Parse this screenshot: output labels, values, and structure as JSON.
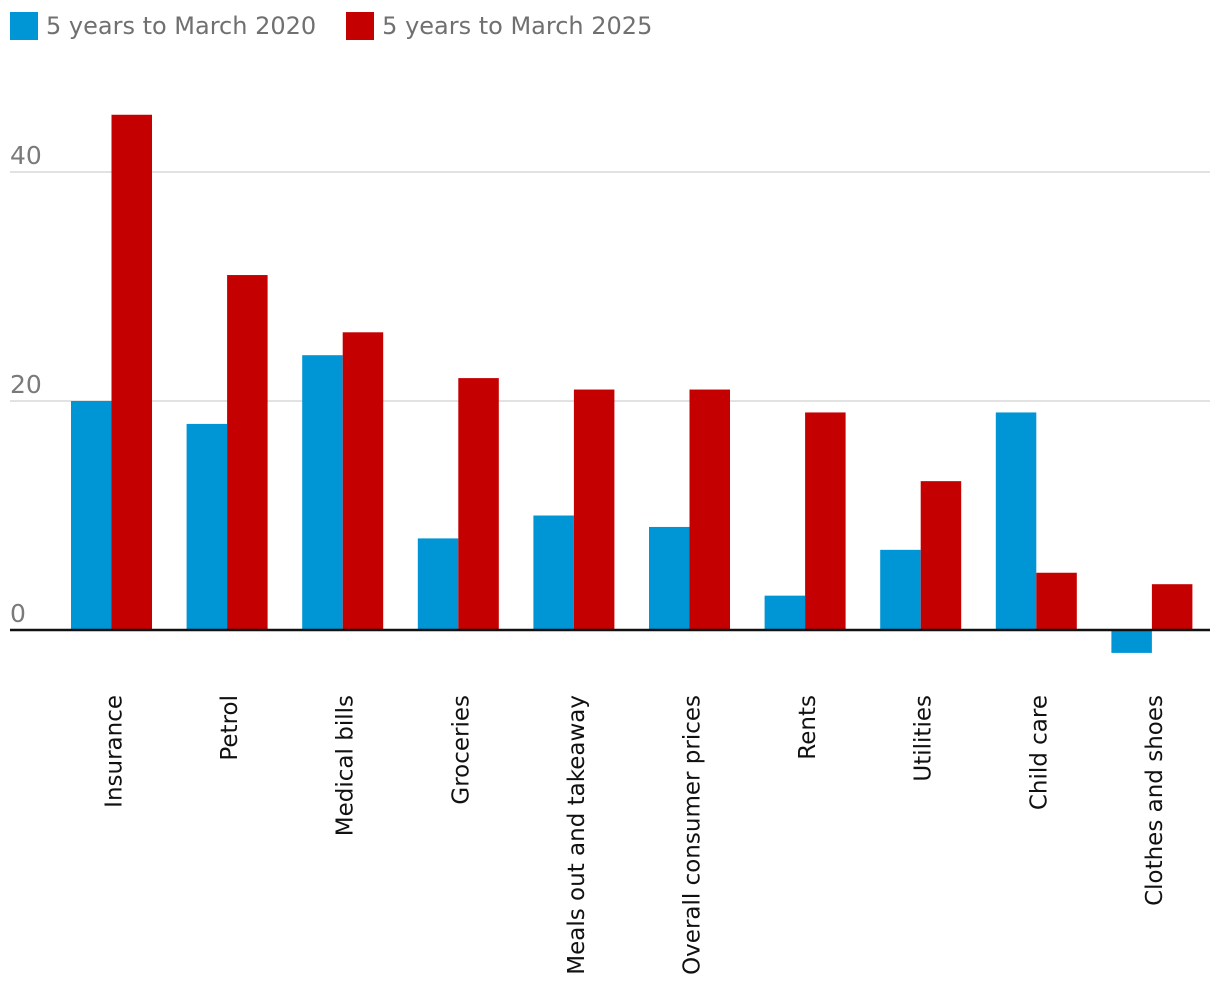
{
  "chart_data": {
    "type": "bar",
    "categories": [
      "Insurance",
      "Petrol",
      "Medical bills",
      "Groceries",
      "Meals out and takeaway",
      "Overall consumer prices",
      "Rents",
      "Utilities",
      "Child care",
      "Clothes and shoes"
    ],
    "series": [
      {
        "name": "5 years to March 2020",
        "color": "#0096d6",
        "values": [
          20,
          18,
          24,
          8,
          10,
          9,
          3,
          7,
          19,
          -2
        ]
      },
      {
        "name": "5 years to March 2025",
        "color": "#c50000",
        "values": [
          45,
          31,
          26,
          22,
          21,
          21,
          19,
          13,
          5,
          4
        ]
      }
    ],
    "yticks": [
      0,
      20,
      40
    ],
    "ylim": [
      -5,
      50
    ],
    "grid": true,
    "legend_position": "top-left"
  }
}
